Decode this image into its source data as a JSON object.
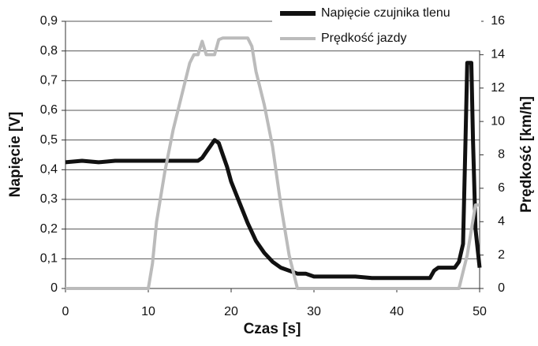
{
  "chart_data": {
    "type": "line",
    "xlabel": "Czas [s]",
    "ylabel": "Napięcie [V]",
    "y2label": "Prędkość [km/h]",
    "xlim": [
      0,
      50
    ],
    "xticks": [
      0,
      10,
      20,
      30,
      40,
      50
    ],
    "ylim": [
      0,
      0.9
    ],
    "yticks": [
      0,
      {
        "value": 0.1,
        "label": "0,1"
      },
      {
        "value": 0.2,
        "label": "0,2"
      },
      {
        "value": 0.3,
        "label": "0,3"
      },
      {
        "value": 0.4,
        "label": "0,4"
      },
      {
        "value": 0.5,
        "label": "0,5"
      },
      {
        "value": 0.6,
        "label": "0,6"
      },
      {
        "value": 0.7,
        "label": "0,7"
      },
      {
        "value": 0.8,
        "label": "0,8"
      },
      {
        "value": 0.9,
        "label": "0,9"
      }
    ],
    "y2lim": [
      0,
      16
    ],
    "y2ticks": [
      0,
      2,
      4,
      6,
      8,
      10,
      12,
      14,
      16
    ],
    "grid": true,
    "legend": "upper right",
    "series": [
      {
        "name": "Napięcie czujnika tlenu",
        "color": "#111111",
        "x": [
          0,
          2,
          4,
          6,
          8,
          10,
          12,
          14,
          16,
          16.5,
          17,
          17.5,
          18,
          18.5,
          19,
          19.5,
          20,
          21,
          22,
          23,
          24,
          25,
          26,
          27,
          28,
          29,
          30,
          35,
          37,
          44,
          44.5,
          45,
          46,
          47,
          47.5,
          48,
          48.3,
          48.5,
          49,
          49.2,
          49.5,
          50
        ],
        "values": [
          0.425,
          0.43,
          0.425,
          0.43,
          0.43,
          0.43,
          0.43,
          0.43,
          0.43,
          0.44,
          0.46,
          0.48,
          0.5,
          0.49,
          0.45,
          0.41,
          0.36,
          0.29,
          0.22,
          0.16,
          0.12,
          0.09,
          0.07,
          0.06,
          0.05,
          0.05,
          0.04,
          0.04,
          0.035,
          0.035,
          0.06,
          0.07,
          0.07,
          0.07,
          0.09,
          0.15,
          0.5,
          0.76,
          0.76,
          0.5,
          0.2,
          0.07
        ]
      },
      {
        "name": "Prędkość jazdy",
        "color": "#bbbbbb",
        "axis": "y2",
        "x": [
          0,
          10,
          10.5,
          11,
          12,
          13,
          14,
          15,
          15.5,
          16,
          16.5,
          17,
          18,
          18.5,
          19,
          22,
          22.5,
          23,
          24,
          25,
          26,
          27,
          28,
          47.5,
          48,
          48.5,
          49,
          49.5,
          50
        ],
        "values": [
          0,
          0,
          1.5,
          4,
          7,
          9.5,
          11.5,
          13.5,
          14,
          14,
          14.8,
          14,
          14,
          14.9,
          15,
          15,
          14.5,
          13,
          11,
          8.5,
          5,
          2,
          0,
          0,
          1,
          2,
          3.5,
          5,
          5
        ]
      }
    ]
  }
}
